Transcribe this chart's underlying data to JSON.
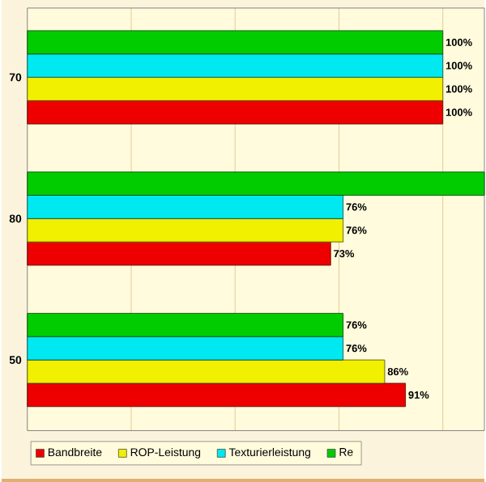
{
  "chart_data": {
    "type": "bar",
    "orientation": "horizontal",
    "categories": [
      "70",
      "80",
      "50"
    ],
    "series": [
      {
        "name": "Bandbreite",
        "color": "#ee0000",
        "values": [
          100,
          73,
          91
        ],
        "value_labels": [
          "100%",
          "73%",
          "91%"
        ]
      },
      {
        "name": "ROP-Leistung",
        "color": "#f0f000",
        "values": [
          100,
          76,
          86
        ],
        "value_labels": [
          "100%",
          "76%",
          "86%"
        ]
      },
      {
        "name": "Texturierleistung",
        "color": "#00e8f0",
        "values": [
          100,
          76,
          76
        ],
        "value_labels": [
          "100%",
          "76%",
          "76%"
        ]
      },
      {
        "name": "Re",
        "color": "#00cc00",
        "values": [
          100,
          110,
          76
        ],
        "value_labels": [
          "100%",
          null,
          "76%"
        ]
      }
    ],
    "xlim": [
      0,
      110
    ],
    "xticks": [
      {
        "value": 25,
        "label": null
      },
      {
        "value": 50,
        "label": null
      },
      {
        "value": 75,
        "label": null
      },
      {
        "value": 100,
        "label": null
      }
    ],
    "tick_labels": "y",
    "grid": "x",
    "legend": "bottom"
  }
}
